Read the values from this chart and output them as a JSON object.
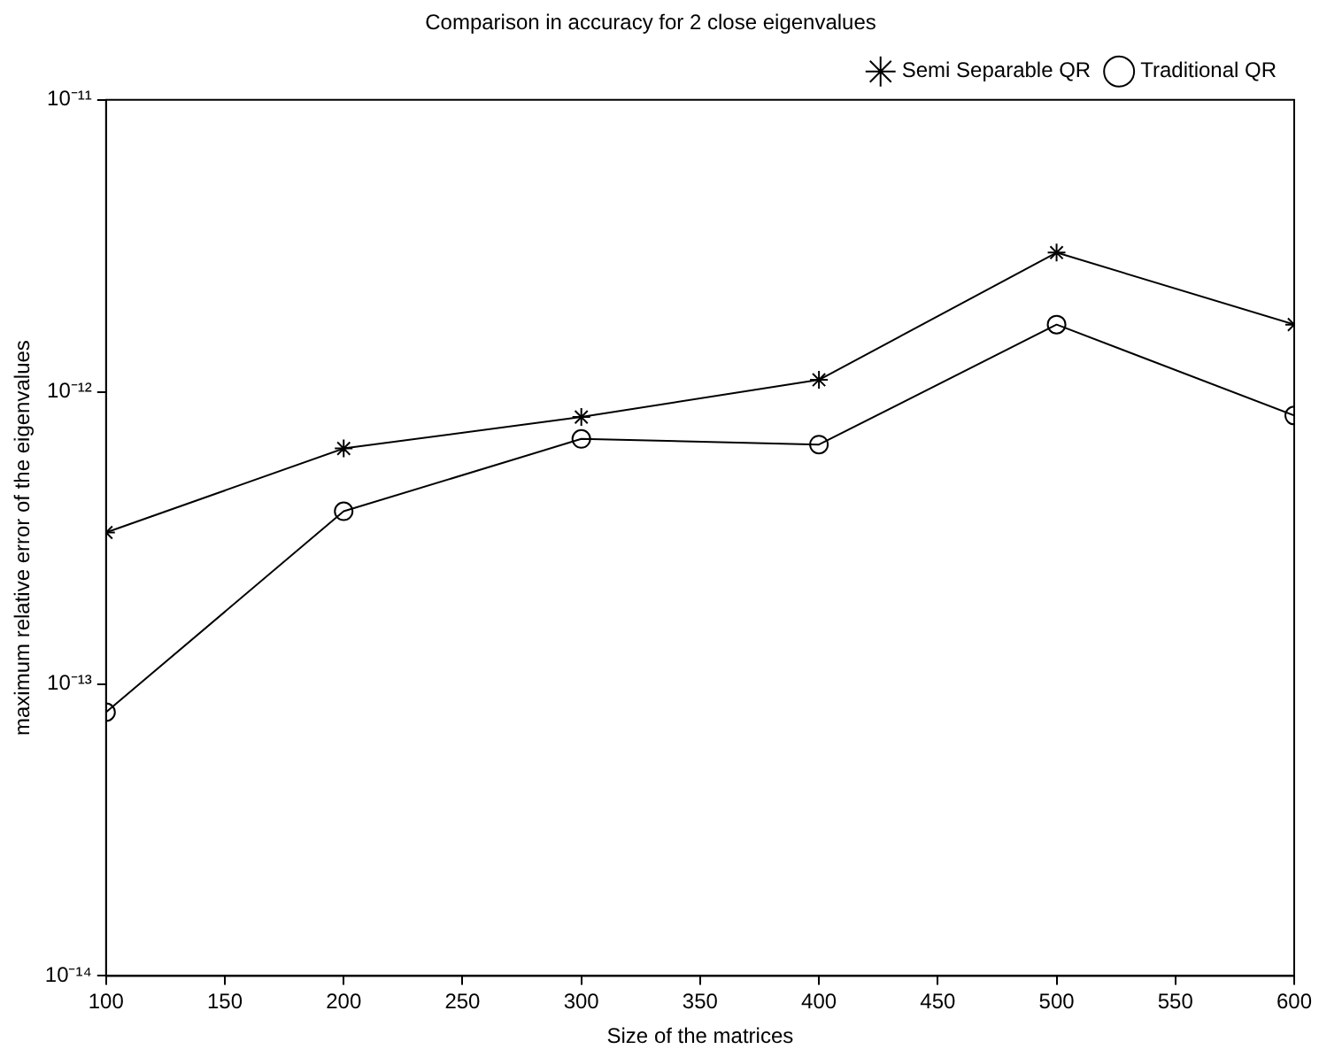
{
  "chart_data": {
    "type": "line",
    "title": "Comparison in accuracy for 2 close eigenvalues",
    "xlabel": "Size of the matrices",
    "ylabel": "maximum relative error of the eigenvalues",
    "x": [
      100,
      200,
      300,
      400,
      500,
      600
    ],
    "series": [
      {
        "name": "Semi Separable QR",
        "color": "#000000",
        "marker": "cross",
        "values": [
          3.3e-13,
          6.4e-13,
          8.2e-13,
          1.1e-12,
          3e-12,
          1.7e-12
        ]
      },
      {
        "name": "Traditional QR",
        "color": "#000000",
        "marker": "circle",
        "values": [
          8e-14,
          3.9e-13,
          6.9e-13,
          6.6e-13,
          1.7e-12,
          8.3e-13
        ]
      }
    ],
    "log": "y",
    "xlim": [
      100,
      600
    ],
    "xticks": [
      100,
      150,
      200,
      250,
      300,
      350,
      400,
      450,
      500,
      550,
      600
    ],
    "ylim": [
      1e-14,
      1e-11
    ],
    "yticks": [
      {
        "value": 1e-14,
        "label": "10⁻¹⁴"
      },
      {
        "value": 1e-13,
        "label": "10⁻¹³"
      },
      {
        "value": 1e-12,
        "label": "10⁻¹²"
      },
      {
        "value": 1e-11,
        "label": "10⁻¹¹"
      }
    ],
    "grid": false,
    "legend": "top right",
    "line_style": "solid"
  }
}
